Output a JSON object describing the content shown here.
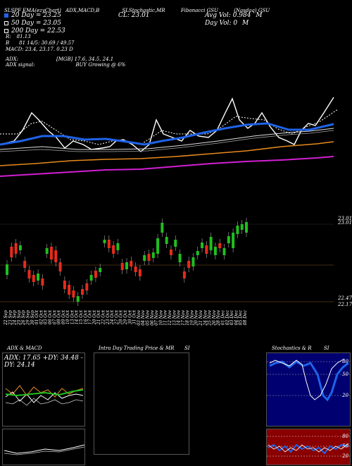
{
  "header": {
    "items": [
      "SLSPF",
      "EMA(ezyChart)",
      "ADX,MACD,B",
      "SLStochastic,MR",
      "Fibonacci GSU",
      "(Nasdaq)"
    ],
    "symbol": "GSU"
  },
  "stats": {
    "day20": "20 Day = 23.25",
    "day50": "50 Day = 23.05",
    "day200": "200 Day = 22.53",
    "close": "CL: 23.01",
    "avg_vol": "Avg Vol: 0.984",
    "avg_vol_unit": "M",
    "day_vol": "Day Vol: 0",
    "day_vol_unit": "M",
    "r": "R",
    "r_val": "81.13",
    "b": "B",
    "b_vals": "81 14/5: 30.69 / 49.57",
    "macd": "MACD: 23.4, 23.17. 0.23 D",
    "adx": "ADX:",
    "adx_vals": "[MGB] 17.6, 34.5, 24.1",
    "adx_signal": "ADX signal:",
    "adx_signal_text": "BUY Growing @ 6%"
  },
  "price_labels": {
    "top": "23.01",
    "top2": "23.01",
    "low": "22.47",
    "low2": "22.17"
  },
  "dates": [
    "22 Sep",
    "23 Sep",
    "24 Sep",
    "25 Sep",
    "26 Sep",
    "29 Sep",
    "30 Sep",
    "01 Oct",
    "02 Oct",
    "03 Oct",
    "06 Oct",
    "07 Oct",
    "08 Oct",
    "09 Oct",
    "10 Oct",
    "13 Oct",
    "14 Oct",
    "15 Oct",
    "16 Oct",
    "17 Oct",
    "20 Oct",
    "21 Oct",
    "22 Oct",
    "23 Oct",
    "24 Oct",
    "27 Oct",
    "28 Oct",
    "29 Oct",
    "30 Oct",
    "31 Oct",
    "03 Nov",
    "04 Nov",
    "05 Nov",
    "06 Nov",
    "07 Nov",
    "10 Nov",
    "11 Nov",
    "12 Nov",
    "13 Nov",
    "14 Nov",
    "17 Nov",
    "18 Nov",
    "19 Nov",
    "20 Nov",
    "21 Nov",
    "24 Nov",
    "25 Nov",
    "26 Nov",
    "28 Nov",
    "01 Dec",
    "02 Dec",
    "03 Dec",
    "04 Dec",
    "05 Dec",
    "08 Dec"
  ],
  "panels": {
    "adx_title": "ADX & MACD",
    "adx_readout": "ADX: 17.65 +DY: 34.48 -DY: 24.14",
    "intraday_title": "Intra Day Trading Price & MR",
    "intraday_si": "SI",
    "stoch_title": "Stochastics & R",
    "stoch_si": "SI"
  },
  "stoch_axis": {
    "top": [
      "80",
      "50",
      "20"
    ],
    "bottom": [
      "80",
      "50",
      "20"
    ]
  },
  "colors": {
    "ema_blue": "#1f63e8",
    "ema_orange": "#e68a1e",
    "ema_magenta": "#d21fd2",
    "up": "#1fbf1f",
    "down": "#e82b1b",
    "stoch_bg": "#000070",
    "rsi_bg": "#8a0000"
  }
}
